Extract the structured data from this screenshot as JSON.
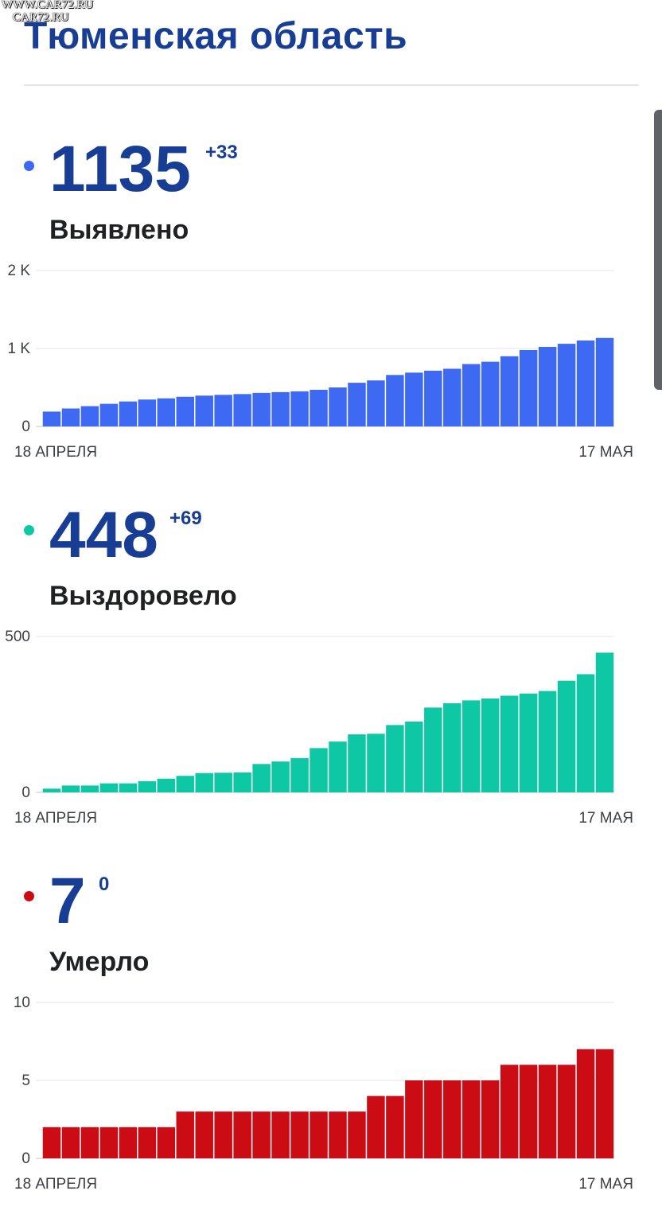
{
  "watermark": {
    "line1": "WWW.CAR72.RU",
    "line2": "CAR72.RU"
  },
  "region_title": "Тюменская область",
  "sections": [
    {
      "id": "confirmed",
      "value": "1135",
      "delta": "+33",
      "label": "Выявлено",
      "color": "#3e69f3"
    },
    {
      "id": "recovered",
      "value": "448",
      "delta": "+69",
      "label": "Выздоровело",
      "color": "#0ec8a5"
    },
    {
      "id": "deaths",
      "value": "7",
      "delta": "0",
      "label": "Умерло",
      "color": "#cc0c14"
    }
  ],
  "chart_data": [
    {
      "type": "bar",
      "series_key": "confirmed",
      "x_start_label": "18 АПРЕЛЯ",
      "x_end_label": "17 МАЯ",
      "ylim": [
        0,
        2000
      ],
      "yticks": [
        0,
        1000,
        2000
      ],
      "ytick_labels": [
        "0",
        "1 K",
        "2 K"
      ],
      "grid": true,
      "values": [
        190,
        230,
        260,
        290,
        320,
        345,
        360,
        380,
        395,
        405,
        415,
        430,
        440,
        450,
        470,
        500,
        560,
        590,
        660,
        690,
        715,
        740,
        800,
        830,
        900,
        980,
        1020,
        1060,
        1102,
        1135
      ]
    },
    {
      "type": "bar",
      "series_key": "recovered",
      "x_start_label": "18 АПРЕЛЯ",
      "x_end_label": "17 МАЯ",
      "ylim": [
        0,
        500
      ],
      "yticks": [
        0,
        500
      ],
      "ytick_labels": [
        "0",
        "500"
      ],
      "grid": true,
      "values": [
        12,
        22,
        22,
        29,
        29,
        36,
        44,
        53,
        62,
        63,
        64,
        91,
        99,
        110,
        142,
        163,
        186,
        188,
        216,
        227,
        272,
        286,
        295,
        301,
        310,
        317,
        325,
        358,
        379,
        448
      ]
    },
    {
      "type": "bar",
      "series_key": "deaths",
      "x_start_label": "18 АПРЕЛЯ",
      "x_end_label": "17 МАЯ",
      "ylim": [
        0,
        10
      ],
      "yticks": [
        0,
        5,
        10
      ],
      "ytick_labels": [
        "0",
        "5",
        "10"
      ],
      "grid": true,
      "values": [
        2,
        2,
        2,
        2,
        2,
        2,
        2,
        3,
        3,
        3,
        3,
        3,
        3,
        3,
        3,
        3,
        3,
        4,
        4,
        5,
        5,
        5,
        5,
        5,
        6,
        6,
        6,
        6,
        7,
        7
      ]
    }
  ]
}
